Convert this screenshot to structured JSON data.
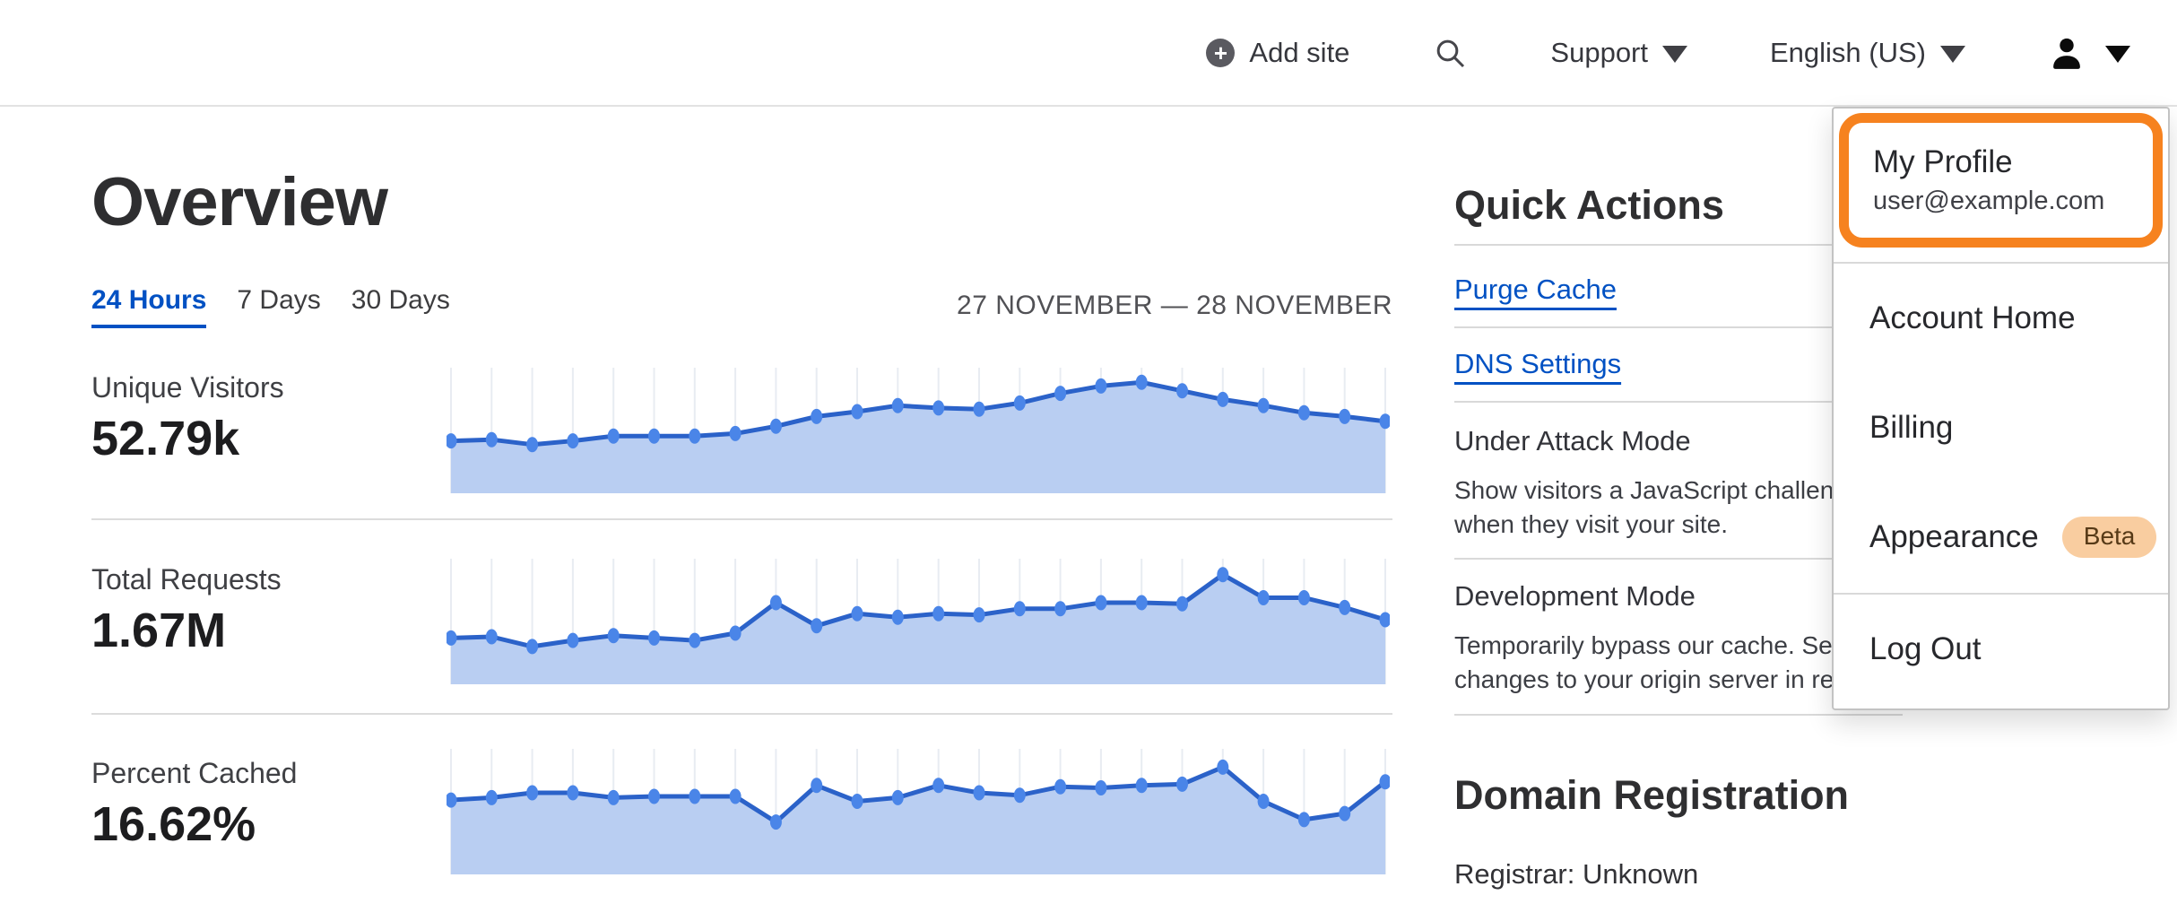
{
  "nav": {
    "add_site": "Add site",
    "support": "Support",
    "language": "English (US)"
  },
  "page": {
    "title": "Overview",
    "tabs": [
      {
        "label": "24 Hours",
        "active": true
      },
      {
        "label": "7 Days",
        "active": false
      },
      {
        "label": "30 Days",
        "active": false
      }
    ],
    "date_range": "27 NOVEMBER — 28 NOVEMBER"
  },
  "metrics": [
    {
      "label": "Unique Visitors",
      "value": "52.79k"
    },
    {
      "label": "Total Requests",
      "value": "1.67M"
    },
    {
      "label": "Percent Cached",
      "value": "16.62%"
    }
  ],
  "chart_data": [
    {
      "type": "area",
      "title": "Unique Visitors",
      "total": "52.79k",
      "x_axis": "24 hourly intervals, 27 November — 28 November",
      "y_units": "percent of chart height (estimated, no axis labels shown)",
      "ylim": [
        0,
        100
      ],
      "grid": "vertical gridlines only",
      "legend": "none",
      "values": [
        40,
        41,
        37,
        40,
        44,
        44,
        44,
        46,
        52,
        60,
        64,
        69,
        67,
        66,
        71,
        79,
        85,
        88,
        81,
        74,
        69,
        63,
        60,
        56
      ]
    },
    {
      "type": "area",
      "title": "Total Requests",
      "total": "1.67M",
      "x_axis": "24 hourly intervals, 27 November — 28 November",
      "y_units": "percent of chart height (estimated, no axis labels shown)",
      "ylim": [
        0,
        100
      ],
      "grid": "vertical gridlines only",
      "legend": "none",
      "values": [
        35,
        36,
        28,
        33,
        37,
        35,
        33,
        39,
        64,
        45,
        55,
        52,
        55,
        54,
        59,
        59,
        64,
        64,
        63,
        87,
        68,
        68,
        60,
        50
      ]
    },
    {
      "type": "area",
      "title": "Percent Cached",
      "total": "16.62%",
      "x_axis": "24 hourly intervals, 27 November — 28 November",
      "y_units": "percent of chart height (estimated, no axis labels shown)",
      "ylim": [
        0,
        100
      ],
      "grid": "vertical gridlines only",
      "legend": "none",
      "values": [
        58,
        60,
        64,
        64,
        60,
        61,
        61,
        61,
        40,
        70,
        57,
        60,
        70,
        64,
        62,
        69,
        68,
        70,
        71,
        85,
        57,
        42,
        47,
        73
      ]
    }
  ],
  "quick_actions": {
    "title": "Quick Actions",
    "links": [
      {
        "label": "Purge Cache"
      },
      {
        "label": "DNS Settings"
      }
    ],
    "toggles": [
      {
        "label": "Under Attack Mode",
        "desc_line1": "Show visitors a JavaScript challen",
        "desc_line2": "when they visit your site."
      },
      {
        "label": "Development Mode",
        "desc_line1": "Temporarily bypass our cache. Se",
        "desc_line2": "changes to your origin server in re"
      }
    ]
  },
  "domain_registration": {
    "title": "Domain Registration",
    "registrar": "Registrar: Unknown"
  },
  "user_menu": {
    "profile": {
      "label": "My Profile",
      "email": "user@example.com"
    },
    "items": [
      {
        "label": "Account Home"
      },
      {
        "label": "Billing"
      },
      {
        "label": "Appearance"
      },
      {
        "label": "Log Out"
      }
    ],
    "beta_badge": "Beta"
  },
  "colors": {
    "accent_blue": "#0051c3",
    "orange": "#f6821f",
    "chart_line": "#2b62c9",
    "chart_fill": "#b9cef2",
    "chart_dot": "#4a85e8",
    "chart_grid": "#e8ecf2",
    "beta_bg": "#f9cda0",
    "beta_text": "#573a17"
  }
}
